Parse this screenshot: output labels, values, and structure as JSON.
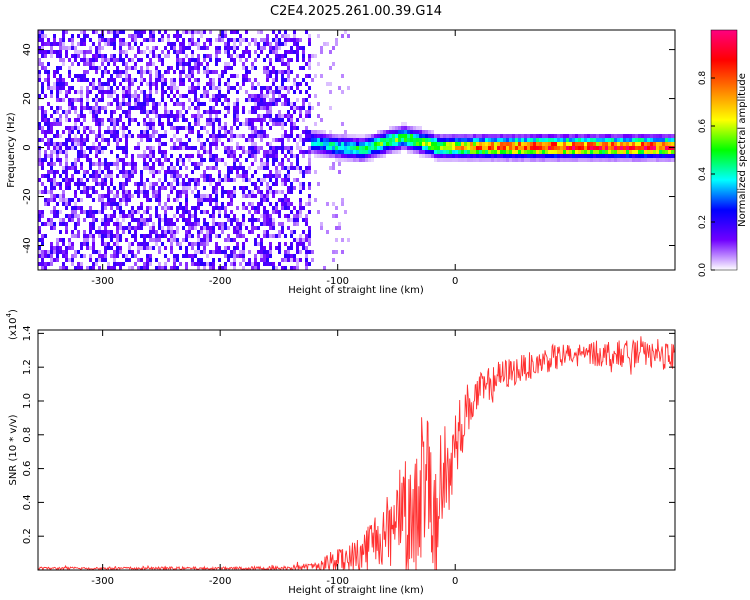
{
  "title": "C2E4.2025.261.00.39.G14",
  "chart_data": [
    {
      "type": "heatmap",
      "xlabel": "Height of straight line (km)",
      "ylabel": "Frequency (Hz)",
      "xlim": [
        -355,
        187
      ],
      "ylim": [
        -50,
        48
      ],
      "xticks": [
        -300,
        -200,
        -100,
        0
      ],
      "xtick_labels": [
        "-300",
        "-200",
        "-100",
        "0"
      ],
      "yticks": [
        -40,
        -20,
        0,
        20,
        40
      ],
      "ytick_labels": [
        "-40",
        "-20",
        "0",
        "20",
        "40"
      ],
      "colorbar": {
        "label": "Normalized spectral amplitude",
        "range": [
          0,
          1
        ],
        "ticks": [
          0.0,
          0.2,
          0.4,
          0.6,
          0.8
        ],
        "tick_labels": [
          "0.0",
          "0.2",
          "0.4",
          "0.6",
          "0.8"
        ],
        "colors": [
          "#ffffff",
          "#7000ff",
          "#0000ff",
          "#00ffff",
          "#00ff00",
          "#ffff00",
          "#ff8000",
          "#ff0000",
          "#ff0080"
        ]
      },
      "noise_region": {
        "x_range": [
          -355,
          -123
        ],
        "mean_amplitude": 0.1
      },
      "signal_ridge": {
        "x": [
          -123,
          -100,
          -80,
          -60,
          -45,
          -30,
          -15,
          0,
          20,
          50,
          80,
          100,
          120,
          150,
          187
        ],
        "frequency_hz": [
          3,
          1,
          0,
          3,
          5,
          3,
          1,
          1,
          1,
          1,
          1,
          1,
          1,
          1,
          1
        ],
        "peak_amplitude": [
          0.4,
          0.45,
          0.5,
          0.55,
          0.55,
          0.6,
          0.65,
          0.7,
          0.85,
          0.9,
          0.95,
          0.95,
          0.9,
          0.95,
          0.9
        ]
      }
    },
    {
      "type": "line",
      "xlabel": "Height of straight line (km)",
      "ylabel": "SNR (10 * v/v)",
      "y_multiplier_label": "(x10",
      "y_multiplier_exp": "4",
      "y_multiplier_close": ")",
      "xlim": [
        -355,
        187
      ],
      "ylim": [
        0,
        1.42
      ],
      "xticks": [
        -300,
        -200,
        -100,
        0
      ],
      "xtick_labels": [
        "-300",
        "-200",
        "-100",
        "0"
      ],
      "yticks": [
        0.2,
        0.4,
        0.6,
        0.8,
        1.0,
        1.2,
        1.4
      ],
      "ytick_labels": [
        "0.2",
        "0.4",
        "0.6",
        "0.8",
        "1.0",
        "1.2",
        "1.4"
      ],
      "series": [
        {
          "name": "SNR",
          "color": "#ff3030",
          "x": [
            -355,
            -300,
            -250,
            -200,
            -150,
            -120,
            -110,
            -100,
            -90,
            -80,
            -70,
            -60,
            -50,
            -45,
            -40,
            -35,
            -30,
            -25,
            -20,
            -15,
            -10,
            -5,
            0,
            5,
            10,
            15,
            20,
            30,
            40,
            60,
            80,
            100,
            120,
            150,
            187
          ],
          "y": [
            0.01,
            0.01,
            0.01,
            0.01,
            0.01,
            0.02,
            0.04,
            0.08,
            0.06,
            0.1,
            0.18,
            0.22,
            0.35,
            0.45,
            0.38,
            0.25,
            0.55,
            0.45,
            0.35,
            0.3,
            0.65,
            0.55,
            0.75,
            0.85,
            0.95,
            1.0,
            1.05,
            1.1,
            1.15,
            1.2,
            1.25,
            1.27,
            1.28,
            1.28,
            1.26
          ],
          "noise_amplitude": [
            0.005,
            0.005,
            0.005,
            0.005,
            0.008,
            0.015,
            0.03,
            0.06,
            0.06,
            0.08,
            0.1,
            0.12,
            0.15,
            0.2,
            0.22,
            0.2,
            0.3,
            0.3,
            0.25,
            0.3,
            0.25,
            0.2,
            0.15,
            0.12,
            0.1,
            0.08,
            0.07,
            0.06,
            0.06,
            0.05,
            0.05,
            0.05,
            0.05,
            0.05,
            0.05
          ]
        }
      ]
    }
  ]
}
